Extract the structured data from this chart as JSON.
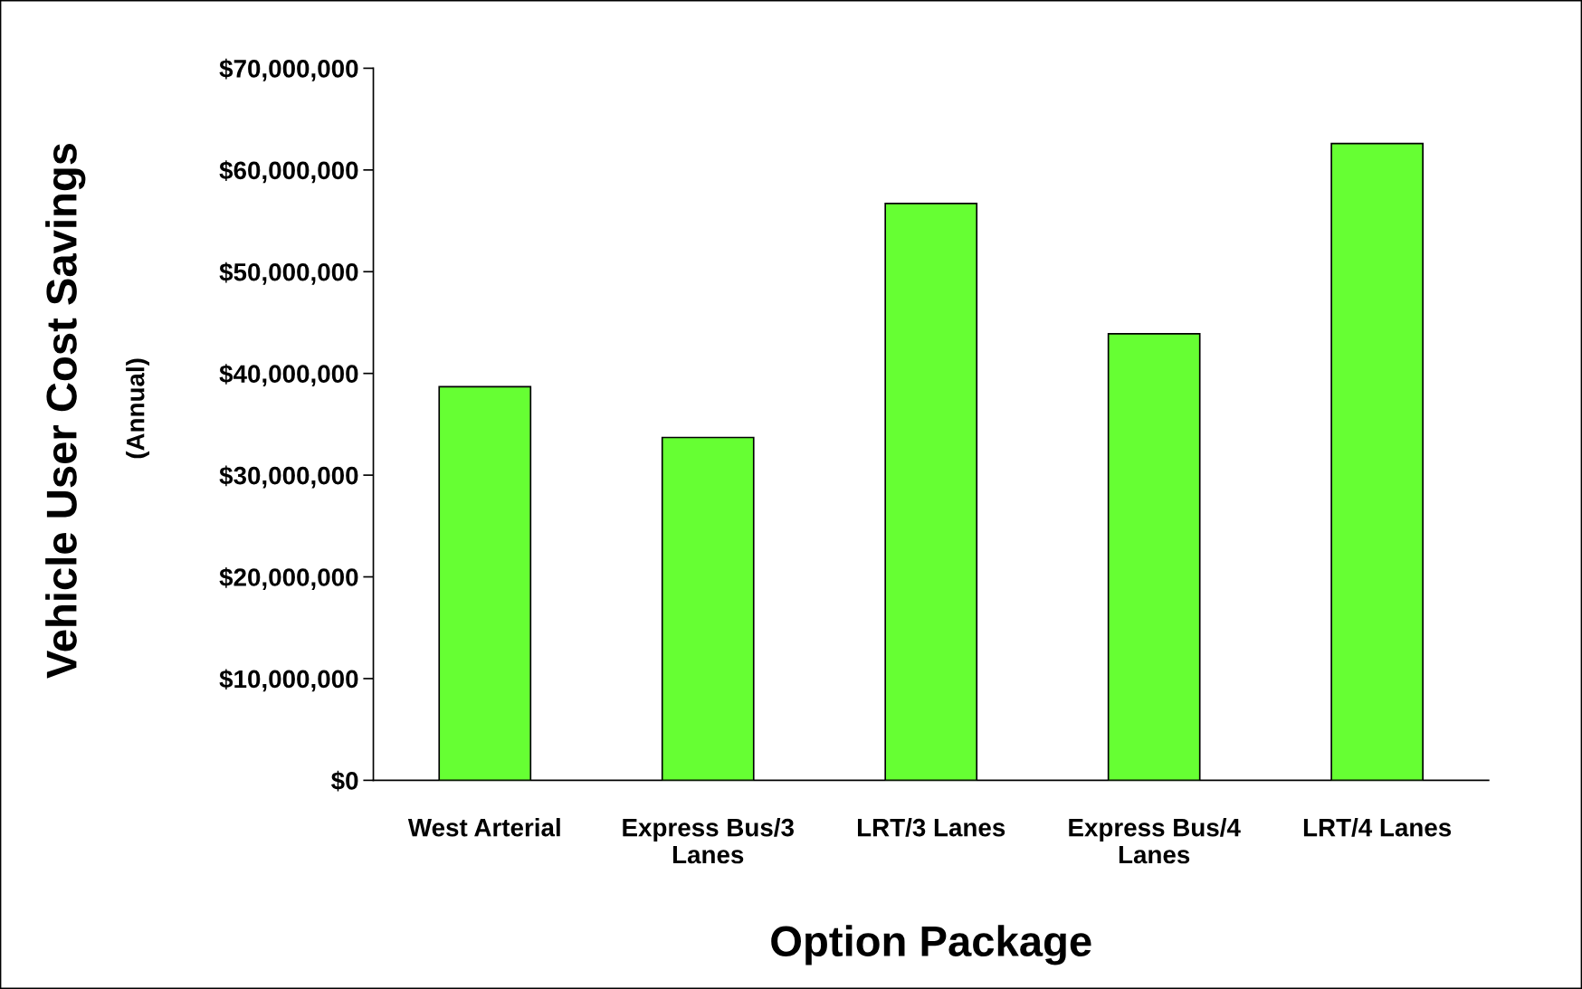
{
  "chart_data": {
    "type": "bar",
    "xlabel": "Option Package",
    "ylabel": "Vehicle User Cost Savings",
    "annotations": [
      "(Annual)"
    ],
    "categories": [
      "West Arterial",
      "Express Bus/3\nLanes",
      "LRT/3 Lanes",
      "Express Bus/4\nLanes",
      "LRT/4 Lanes"
    ],
    "values": [
      38700000,
      33700000,
      56700000,
      43900000,
      62600000
    ],
    "color": "#66ff33",
    "ylim": [
      0,
      70000000
    ],
    "yticks": [
      {
        "value": 0,
        "label": "$0"
      },
      {
        "value": 10000000,
        "label": "$10,000,000"
      },
      {
        "value": 20000000,
        "label": "$20,000,000"
      },
      {
        "value": 30000000,
        "label": "$30,000,000"
      },
      {
        "value": 40000000,
        "label": "$40,000,000"
      },
      {
        "value": 50000000,
        "label": "$50,000,000"
      },
      {
        "value": 60000000,
        "label": "$60,000,000"
      },
      {
        "value": 70000000,
        "label": "$70,000,000"
      }
    ],
    "grid": false,
    "legend": false
  }
}
